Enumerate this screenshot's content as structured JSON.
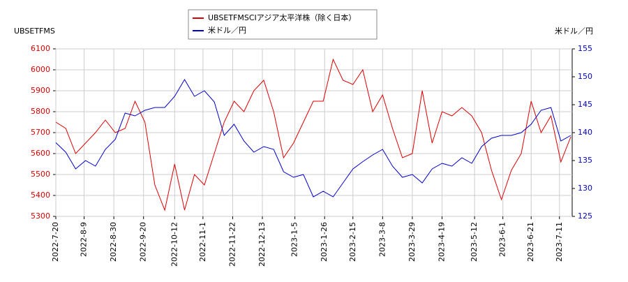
{
  "chart_data": {
    "type": "line",
    "y_label": "UBSETFMS",
    "y2_label": "米ドル／円",
    "x": [
      "2022-7-20",
      "2022-7-27",
      "2022-8-3",
      "2022-8-10",
      "2022-8-17",
      "2022-8-24",
      "2022-8-31",
      "2022-9-7",
      "2022-9-14",
      "2022-9-21",
      "2022-9-28",
      "2022-10-5",
      "2022-10-12",
      "2022-10-19",
      "2022-10-26",
      "2022-11-2",
      "2022-11-9",
      "2022-11-16",
      "2022-11-23",
      "2022-11-30",
      "2022-12-7",
      "2022-12-14",
      "2022-12-21",
      "2022-12-28",
      "2023-1-4",
      "2023-1-11",
      "2023-1-18",
      "2023-1-25",
      "2023-2-1",
      "2023-2-8",
      "2023-2-15",
      "2023-2-22",
      "2023-3-1",
      "2023-3-8",
      "2023-3-15",
      "2023-3-22",
      "2023-3-29",
      "2023-4-5",
      "2023-4-12",
      "2023-4-19",
      "2023-4-26",
      "2023-5-3",
      "2023-5-10",
      "2023-5-17",
      "2023-5-24",
      "2023-5-31",
      "2023-6-7",
      "2023-6-14",
      "2023-6-21",
      "2023-6-28",
      "2023-7-5",
      "2023-7-12",
      "2023-7-19"
    ],
    "xlim": [
      "2022-7-20",
      "2023-7-20"
    ],
    "xticks": [
      "2022-7-20",
      "2022-8-9",
      "2022-8-30",
      "2022-9-20",
      "2022-10-12",
      "2022-11-1",
      "2022-11-22",
      "2022-12-13",
      "2023-1-5",
      "2023-1-26",
      "2023-2-15",
      "2023-3-8",
      "2023-3-29",
      "2023-4-19",
      "2023-5-12",
      "2023-6-1",
      "2023-6-21",
      "2023-7-11"
    ],
    "ylim": [
      5300,
      6100
    ],
    "yticks": [
      5300,
      5400,
      5500,
      5600,
      5700,
      5800,
      5900,
      6000,
      6100
    ],
    "y2lim": [
      125,
      155
    ],
    "y2ticks": [
      125,
      130,
      135,
      140,
      145,
      150,
      155
    ],
    "grid": true,
    "legend": "top",
    "series": [
      {
        "name": "UBSETFMSCIアジア太平洋株（除く日本）",
        "color": "#dd0000",
        "values": [
          5750,
          5720,
          5600,
          5650,
          5700,
          5760,
          5700,
          5720,
          5850,
          5750,
          5450,
          5330,
          5550,
          5330,
          5500,
          5450,
          5600,
          5750,
          5850,
          5800,
          5900,
          5950,
          5800,
          5580,
          5650,
          5750,
          5850,
          5850,
          6050,
          5950,
          5930,
          6000,
          5800,
          5880,
          5720,
          5580,
          5600,
          5900,
          5650,
          5800,
          5780,
          5820,
          5780,
          5700,
          5520,
          5380,
          5520,
          5600,
          5850,
          5700,
          5780,
          5560,
          5680
        ]
      },
      {
        "name": "米ドル／円",
        "color": "#0000cc",
        "axis": "y2",
        "values": [
          138.2,
          136.5,
          133.5,
          135,
          134,
          137,
          138.8,
          143.5,
          143,
          144,
          144.5,
          144.5,
          146.5,
          149.5,
          146.5,
          147.5,
          145.5,
          139.5,
          141.5,
          138.5,
          136.5,
          137.5,
          137,
          133,
          132,
          132.5,
          128.5,
          129.5,
          128.5,
          131,
          133.5,
          134.8,
          136,
          137,
          134,
          132,
          132.5,
          131,
          133.5,
          134.5,
          134,
          135.5,
          134.5,
          137.5,
          139,
          139.5,
          139.5,
          140,
          141.5,
          144,
          144.5,
          138.5,
          139.5
        ]
      }
    ]
  }
}
